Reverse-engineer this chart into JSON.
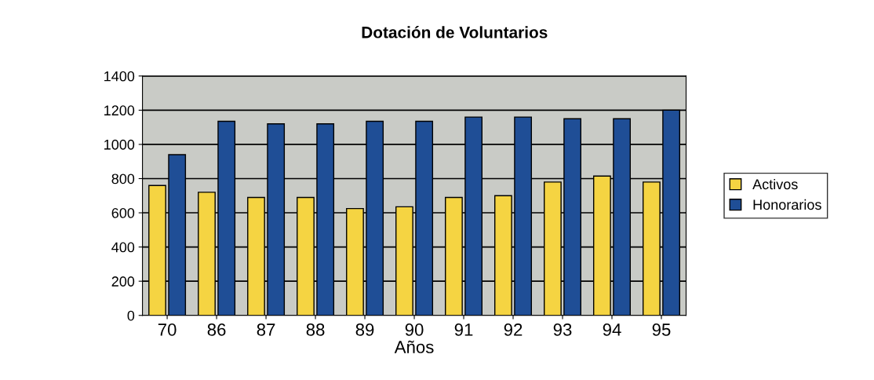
{
  "chart_data": {
    "type": "bar",
    "title": "Dotación de Voluntarios",
    "xlabel": "Años",
    "categories": [
      "70",
      "86",
      "87",
      "88",
      "89",
      "90",
      "91",
      "92",
      "93",
      "94",
      "95"
    ],
    "series": [
      {
        "name": "Activos",
        "color": "#f5d442",
        "values": [
          760,
          720,
          690,
          690,
          625,
          635,
          690,
          700,
          780,
          815,
          780
        ]
      },
      {
        "name": "Honorarios",
        "color": "#1f4e96",
        "values": [
          940,
          1135,
          1120,
          1120,
          1135,
          1135,
          1160,
          1160,
          1150,
          1150,
          1200
        ]
      }
    ],
    "ylim": [
      0,
      1400
    ],
    "yticks": [
      0,
      200,
      400,
      600,
      800,
      1000,
      1200,
      1400
    ],
    "grid": "y",
    "legend": "right"
  }
}
